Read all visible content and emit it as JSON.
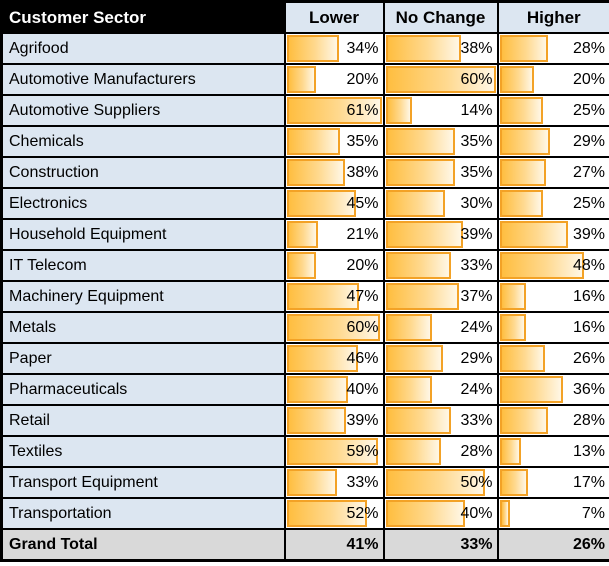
{
  "table": {
    "sector_header": "Customer Sector",
    "unit": "%",
    "columns": [
      {
        "key": "lower",
        "label": "Lower",
        "scale_max": 61
      },
      {
        "key": "no_change",
        "label": "No Change",
        "scale_max": 55
      },
      {
        "key": "higher",
        "label": "Higher",
        "scale_max": 61
      }
    ],
    "rows": [
      {
        "sector": "Agrifood",
        "lower": 34,
        "no_change": 38,
        "higher": 28
      },
      {
        "sector": "Automotive Manufacturers",
        "lower": 20,
        "no_change": 60,
        "higher": 20
      },
      {
        "sector": "Automotive Suppliers",
        "lower": 61,
        "no_change": 14,
        "higher": 25
      },
      {
        "sector": "Chemicals",
        "lower": 35,
        "no_change": 35,
        "higher": 29
      },
      {
        "sector": "Construction",
        "lower": 38,
        "no_change": 35,
        "higher": 27
      },
      {
        "sector": "Electronics",
        "lower": 45,
        "no_change": 30,
        "higher": 25
      },
      {
        "sector": "Household Equipment",
        "lower": 21,
        "no_change": 39,
        "higher": 39
      },
      {
        "sector": "IT Telecom",
        "lower": 20,
        "no_change": 33,
        "higher": 48
      },
      {
        "sector": "Machinery Equipment",
        "lower": 47,
        "no_change": 37,
        "higher": 16
      },
      {
        "sector": "Metals",
        "lower": 60,
        "no_change": 24,
        "higher": 16
      },
      {
        "sector": "Paper",
        "lower": 46,
        "no_change": 29,
        "higher": 26
      },
      {
        "sector": "Pharmaceuticals",
        "lower": 40,
        "no_change": 24,
        "higher": 36
      },
      {
        "sector": "Retail",
        "lower": 39,
        "no_change": 33,
        "higher": 28
      },
      {
        "sector": "Textiles",
        "lower": 59,
        "no_change": 28,
        "higher": 13
      },
      {
        "sector": "Transport Equipment",
        "lower": 33,
        "no_change": 50,
        "higher": 17
      },
      {
        "sector": "Transportation",
        "lower": 52,
        "no_change": 40,
        "higher": 7
      }
    ],
    "grand_total": {
      "sector": "Grand Total",
      "lower": 41,
      "no_change": 33,
      "higher": 26
    }
  },
  "colors": {
    "grid": "#000000",
    "header_bg": "#000000",
    "header_text": "#FFFFFF",
    "head_blue": "#DCE6F1",
    "row_blue": "#DCE6F1",
    "total_bg": "#D9D9D9",
    "bar_border": "#F3A226",
    "bar_fill_start": "#FFBE40",
    "bar_fill_mid": "#FFD98F",
    "bar_fill_end": "#FFF7E6"
  },
  "chart_data": {
    "type": "table",
    "title": "",
    "subtitle": "",
    "unit": "%",
    "categories": [
      "Agrifood",
      "Automotive Manufacturers",
      "Automotive Suppliers",
      "Chemicals",
      "Construction",
      "Electronics",
      "Household Equipment",
      "IT Telecom",
      "Machinery Equipment",
      "Metals",
      "Paper",
      "Pharmaceuticals",
      "Retail",
      "Textiles",
      "Transport Equipment",
      "Transportation"
    ],
    "series": [
      {
        "name": "Lower",
        "values": [
          34,
          20,
          61,
          35,
          38,
          45,
          21,
          20,
          47,
          60,
          46,
          40,
          39,
          59,
          33,
          52
        ]
      },
      {
        "name": "No Change",
        "values": [
          38,
          60,
          14,
          35,
          35,
          30,
          39,
          33,
          37,
          24,
          29,
          24,
          33,
          28,
          50,
          40
        ]
      },
      {
        "name": "Higher",
        "values": [
          28,
          20,
          25,
          29,
          27,
          25,
          39,
          48,
          16,
          16,
          26,
          36,
          28,
          13,
          17,
          7
        ]
      }
    ],
    "grand_total": {
      "Lower": 41,
      "No Change": 33,
      "Higher": 26
    },
    "layout_hints": {
      "style": "in-cell gradient data bars (orange), value right-aligned in each cell",
      "bar_scale_max": {
        "Lower": 61,
        "No Change": 55,
        "Higher": 61
      },
      "first_column_header_bg": "black",
      "grand_total_row_bg": "gray"
    }
  }
}
